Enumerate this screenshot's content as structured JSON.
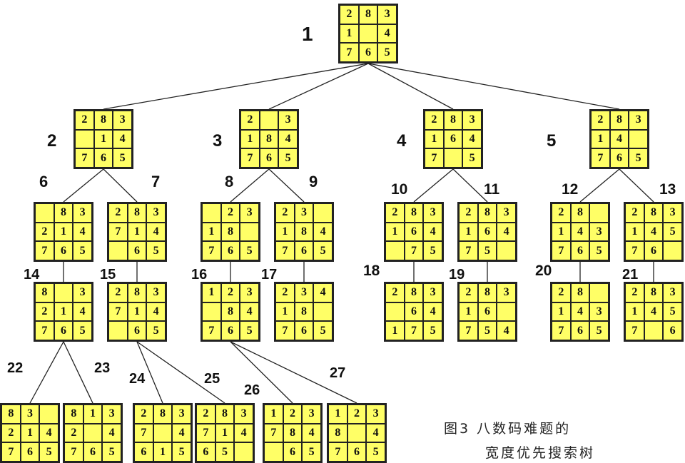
{
  "diagram": {
    "caption": [
      "图3 八数码难题的",
      "宽度优先搜索树"
    ],
    "nodes": [
      {
        "id": "1",
        "board": [
          [
            "2",
            "8",
            "3"
          ],
          [
            "1",
            "",
            "4"
          ],
          [
            "7",
            "6",
            "5"
          ]
        ]
      },
      {
        "id": "2",
        "board": [
          [
            "2",
            "8",
            "3"
          ],
          [
            "",
            "1",
            "4"
          ],
          [
            "7",
            "6",
            "5"
          ]
        ]
      },
      {
        "id": "3",
        "board": [
          [
            "2",
            "",
            "3"
          ],
          [
            "1",
            "8",
            "4"
          ],
          [
            "7",
            "6",
            "5"
          ]
        ]
      },
      {
        "id": "4",
        "board": [
          [
            "2",
            "8",
            "3"
          ],
          [
            "1",
            "6",
            "4"
          ],
          [
            "7",
            "",
            "5"
          ]
        ]
      },
      {
        "id": "5",
        "board": [
          [
            "2",
            "8",
            "3"
          ],
          [
            "1",
            "4",
            ""
          ],
          [
            "7",
            "6",
            "5"
          ]
        ]
      },
      {
        "id": "6",
        "board": [
          [
            "",
            "8",
            "3"
          ],
          [
            "2",
            "1",
            "4"
          ],
          [
            "7",
            "6",
            "5"
          ]
        ]
      },
      {
        "id": "7",
        "board": [
          [
            "2",
            "8",
            "3"
          ],
          [
            "7",
            "1",
            "4"
          ],
          [
            "",
            "6",
            "5"
          ]
        ]
      },
      {
        "id": "8",
        "board": [
          [
            "",
            "2",
            "3"
          ],
          [
            "1",
            "8",
            ""
          ],
          [
            "7",
            "6",
            "5"
          ]
        ]
      },
      {
        "id": "9",
        "board": [
          [
            "2",
            "3",
            ""
          ],
          [
            "1",
            "8",
            "4"
          ],
          [
            "7",
            "6",
            "5"
          ]
        ]
      },
      {
        "id": "10",
        "board": [
          [
            "2",
            "8",
            "3"
          ],
          [
            "1",
            "6",
            "4"
          ],
          [
            "",
            "7",
            "5"
          ]
        ]
      },
      {
        "id": "11",
        "board": [
          [
            "2",
            "8",
            "3"
          ],
          [
            "1",
            "6",
            "4"
          ],
          [
            "7",
            "5",
            ""
          ]
        ]
      },
      {
        "id": "12",
        "board": [
          [
            "2",
            "8",
            ""
          ],
          [
            "1",
            "4",
            "3"
          ],
          [
            "7",
            "6",
            "5"
          ]
        ]
      },
      {
        "id": "13",
        "board": [
          [
            "2",
            "8",
            "3"
          ],
          [
            "1",
            "4",
            "5"
          ],
          [
            "7",
            "6",
            ""
          ]
        ]
      },
      {
        "id": "14",
        "board": [
          [
            "8",
            "",
            "3"
          ],
          [
            "2",
            "1",
            "4"
          ],
          [
            "7",
            "6",
            "5"
          ]
        ]
      },
      {
        "id": "15",
        "board": [
          [
            "2",
            "8",
            "3"
          ],
          [
            "7",
            "1",
            "4"
          ],
          [
            "",
            "6",
            "5"
          ]
        ]
      },
      {
        "id": "16",
        "board": [
          [
            "1",
            "2",
            "3"
          ],
          [
            "",
            "8",
            "4"
          ],
          [
            "7",
            "6",
            "5"
          ]
        ]
      },
      {
        "id": "17",
        "board": [
          [
            "2",
            "3",
            "4"
          ],
          [
            "1",
            "8",
            ""
          ],
          [
            "7",
            "6",
            "5"
          ]
        ]
      },
      {
        "id": "18",
        "board": [
          [
            "2",
            "8",
            "3"
          ],
          [
            "",
            "6",
            "4"
          ],
          [
            "1",
            "7",
            "5"
          ]
        ]
      },
      {
        "id": "19",
        "board": [
          [
            "2",
            "8",
            "3"
          ],
          [
            "1",
            "6",
            ""
          ],
          [
            "7",
            "5",
            "4"
          ]
        ]
      },
      {
        "id": "20",
        "board": [
          [
            "2",
            "8",
            ""
          ],
          [
            "1",
            "4",
            "3"
          ],
          [
            "7",
            "6",
            "5"
          ]
        ]
      },
      {
        "id": "21",
        "board": [
          [
            "2",
            "8",
            "3"
          ],
          [
            "1",
            "4",
            "5"
          ],
          [
            "7",
            "",
            "6"
          ]
        ]
      },
      {
        "id": "22",
        "board": [
          [
            "8",
            "3",
            ""
          ],
          [
            "2",
            "1",
            "4"
          ],
          [
            "7",
            "6",
            "5"
          ]
        ]
      },
      {
        "id": "23",
        "board": [
          [
            "8",
            "1",
            "3"
          ],
          [
            "2",
            "",
            "4"
          ],
          [
            "7",
            "6",
            "5"
          ]
        ]
      },
      {
        "id": "24",
        "board": [
          [
            "2",
            "8",
            "3"
          ],
          [
            "7",
            "",
            "4"
          ],
          [
            "6",
            "1",
            "5"
          ]
        ]
      },
      {
        "id": "25",
        "board": [
          [
            "2",
            "8",
            "3"
          ],
          [
            "7",
            "1",
            "4"
          ],
          [
            "6",
            "5",
            ""
          ]
        ]
      },
      {
        "id": "26",
        "board": [
          [
            "1",
            "2",
            "3"
          ],
          [
            "7",
            "8",
            "4"
          ],
          [
            "",
            "6",
            "5"
          ]
        ]
      },
      {
        "id": "27",
        "board": [
          [
            "1",
            "2",
            "3"
          ],
          [
            "8",
            "",
            "4"
          ],
          [
            "7",
            "6",
            "5"
          ]
        ]
      }
    ],
    "edges": [
      [
        "1",
        "2"
      ],
      [
        "1",
        "3"
      ],
      [
        "1",
        "4"
      ],
      [
        "1",
        "5"
      ],
      [
        "2",
        "6"
      ],
      [
        "2",
        "7"
      ],
      [
        "3",
        "8"
      ],
      [
        "3",
        "9"
      ],
      [
        "4",
        "10"
      ],
      [
        "4",
        "11"
      ],
      [
        "5",
        "12"
      ],
      [
        "5",
        "13"
      ],
      [
        "6",
        "14"
      ],
      [
        "7",
        "15"
      ],
      [
        "8",
        "16"
      ],
      [
        "9",
        "17"
      ],
      [
        "10",
        "18"
      ],
      [
        "11",
        "19"
      ],
      [
        "12",
        "20"
      ],
      [
        "13",
        "21"
      ],
      [
        "14",
        "22"
      ],
      [
        "14",
        "23"
      ],
      [
        "15",
        "24"
      ],
      [
        "15",
        "25"
      ],
      [
        "16",
        "26"
      ],
      [
        "16",
        "27"
      ]
    ]
  }
}
